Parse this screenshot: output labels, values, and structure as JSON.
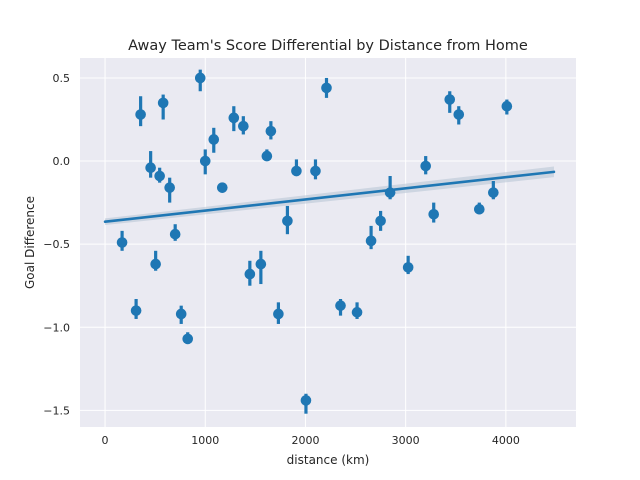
{
  "chart_data": {
    "type": "scatter",
    "title": "Away Team's Score Differential by Distance from Home",
    "xlabel": "distance (km)",
    "ylabel": "Goal Difference",
    "xlim": [
      -250,
      4700
    ],
    "ylim": [
      -1.6,
      0.62
    ],
    "xticks": [
      0,
      1000,
      2000,
      3000,
      4000
    ],
    "xtick_labels": [
      "0",
      "1000",
      "2000",
      "3000",
      "4000"
    ],
    "yticks": [
      -1.5,
      -1.0,
      -0.5,
      0.0,
      0.5
    ],
    "ytick_labels": [
      "−1.5",
      "−1.0",
      "−0.5",
      "0.0",
      "0.5"
    ],
    "grid": true,
    "colors": {
      "point": "#1f77b4",
      "background": "#eaeaf2",
      "grid": "#ffffff",
      "ci_band": "#b9c7d6"
    },
    "points": [
      {
        "x": 170,
        "y": -0.49,
        "lo": -0.54,
        "hi": -0.42
      },
      {
        "x": 310,
        "y": -0.9,
        "lo": -0.95,
        "hi": -0.83
      },
      {
        "x": 355,
        "y": 0.28,
        "lo": 0.21,
        "hi": 0.39
      },
      {
        "x": 455,
        "y": -0.04,
        "lo": -0.1,
        "hi": 0.06
      },
      {
        "x": 505,
        "y": -0.62,
        "lo": -0.66,
        "hi": -0.54
      },
      {
        "x": 545,
        "y": -0.09,
        "lo": -0.13,
        "hi": -0.04
      },
      {
        "x": 580,
        "y": 0.35,
        "lo": 0.25,
        "hi": 0.4
      },
      {
        "x": 645,
        "y": -0.16,
        "lo": -0.25,
        "hi": -0.1
      },
      {
        "x": 700,
        "y": -0.44,
        "lo": -0.48,
        "hi": -0.38
      },
      {
        "x": 760,
        "y": -0.92,
        "lo": -0.98,
        "hi": -0.87
      },
      {
        "x": 825,
        "y": -1.07,
        "lo": -1.1,
        "hi": -1.03
      },
      {
        "x": 950,
        "y": 0.5,
        "lo": 0.42,
        "hi": 0.55
      },
      {
        "x": 1000,
        "y": 0.0,
        "lo": -0.08,
        "hi": 0.07
      },
      {
        "x": 1085,
        "y": 0.13,
        "lo": 0.05,
        "hi": 0.2
      },
      {
        "x": 1170,
        "y": -0.16,
        "lo": -0.19,
        "hi": -0.13
      },
      {
        "x": 1285,
        "y": 0.26,
        "lo": 0.18,
        "hi": 0.33
      },
      {
        "x": 1380,
        "y": 0.21,
        "lo": 0.16,
        "hi": 0.27
      },
      {
        "x": 1445,
        "y": -0.68,
        "lo": -0.75,
        "hi": -0.6
      },
      {
        "x": 1555,
        "y": -0.62,
        "lo": -0.74,
        "hi": -0.54
      },
      {
        "x": 1615,
        "y": 0.03,
        "lo": 0.0,
        "hi": 0.07
      },
      {
        "x": 1655,
        "y": 0.18,
        "lo": 0.13,
        "hi": 0.24
      },
      {
        "x": 1730,
        "y": -0.92,
        "lo": -0.98,
        "hi": -0.85
      },
      {
        "x": 1820,
        "y": -0.36,
        "lo": -0.44,
        "hi": -0.27
      },
      {
        "x": 1910,
        "y": -0.06,
        "lo": -0.09,
        "hi": 0.01
      },
      {
        "x": 2005,
        "y": -1.44,
        "lo": -1.52,
        "hi": -1.4
      },
      {
        "x": 2100,
        "y": -0.06,
        "lo": -0.11,
        "hi": 0.01
      },
      {
        "x": 2210,
        "y": 0.44,
        "lo": 0.38,
        "hi": 0.5
      },
      {
        "x": 2350,
        "y": -0.87,
        "lo": -0.93,
        "hi": -0.83
      },
      {
        "x": 2515,
        "y": -0.91,
        "lo": -0.95,
        "hi": -0.85
      },
      {
        "x": 2655,
        "y": -0.48,
        "lo": -0.53,
        "hi": -0.39
      },
      {
        "x": 2750,
        "y": -0.36,
        "lo": -0.42,
        "hi": -0.3
      },
      {
        "x": 2845,
        "y": -0.19,
        "lo": -0.23,
        "hi": -0.09
      },
      {
        "x": 3025,
        "y": -0.64,
        "lo": -0.68,
        "hi": -0.57
      },
      {
        "x": 3200,
        "y": -0.03,
        "lo": -0.08,
        "hi": 0.03
      },
      {
        "x": 3280,
        "y": -0.32,
        "lo": -0.37,
        "hi": -0.25
      },
      {
        "x": 3440,
        "y": 0.37,
        "lo": 0.29,
        "hi": 0.42
      },
      {
        "x": 3530,
        "y": 0.28,
        "lo": 0.22,
        "hi": 0.33
      },
      {
        "x": 3735,
        "y": -0.29,
        "lo": -0.32,
        "hi": -0.25
      },
      {
        "x": 3875,
        "y": -0.19,
        "lo": -0.23,
        "hi": -0.12
      },
      {
        "x": 4010,
        "y": 0.33,
        "lo": 0.28,
        "hi": 0.37
      }
    ],
    "regression": {
      "x0": 0,
      "y0": -0.365,
      "x1": 4480,
      "y1": -0.065,
      "band": 0.02
    }
  }
}
